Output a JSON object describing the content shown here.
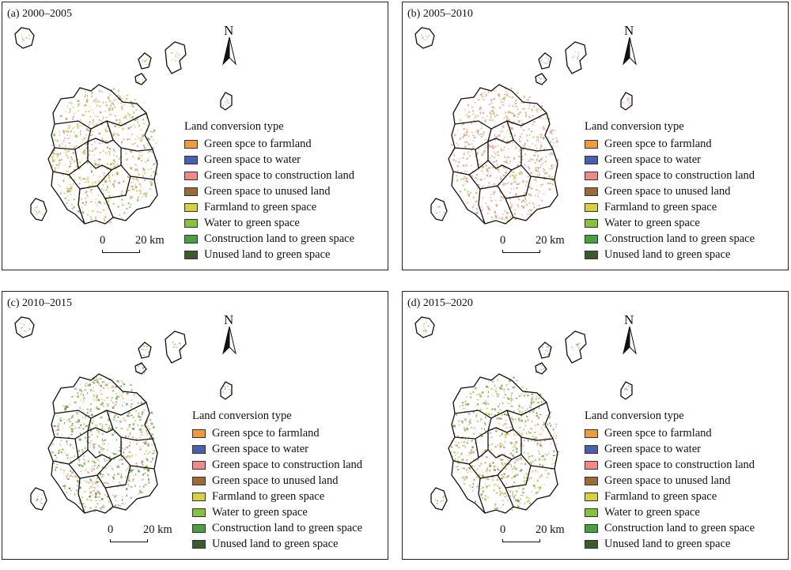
{
  "panels": [
    {
      "title": "(a) 2000–2005",
      "speckle": [
        "#d4c84a",
        "#c8c050",
        "#7aa84a",
        "#e08a8a"
      ]
    },
    {
      "title": "(b) 2005–2010",
      "speckle": [
        "#e0907a",
        "#d8a070",
        "#e7a0a0",
        "#b8c860"
      ]
    },
    {
      "title": "(c) 2010–2015",
      "speckle": [
        "#d4c84a",
        "#e08a8a",
        "#6aa84a",
        "#4a8a3a"
      ]
    },
    {
      "title": "(d) 2015–2020",
      "speckle": [
        "#7aa84a",
        "#6a9a3a",
        "#d4c84a",
        "#e08a8a"
      ]
    }
  ],
  "north_label": "N",
  "legend": {
    "title": "Land conversion type",
    "items": [
      {
        "label": "Green spce to farmland",
        "color": "#f09a3e"
      },
      {
        "label": "Green space to water",
        "color": "#4a5fb0"
      },
      {
        "label": "Green space to construction land",
        "color": "#f08a8a"
      },
      {
        "label": "Green space to unused land",
        "color": "#9a6a3a"
      },
      {
        "label": "Farmland to green space",
        "color": "#d8d040"
      },
      {
        "label": "Water to green space",
        "color": "#88c040"
      },
      {
        "label": "Construction land to green space",
        "color": "#4aa040"
      },
      {
        "label": "Unused land to green space",
        "color": "#3a5a30"
      }
    ]
  },
  "scale": {
    "zero": "0",
    "end": "20 km"
  }
}
